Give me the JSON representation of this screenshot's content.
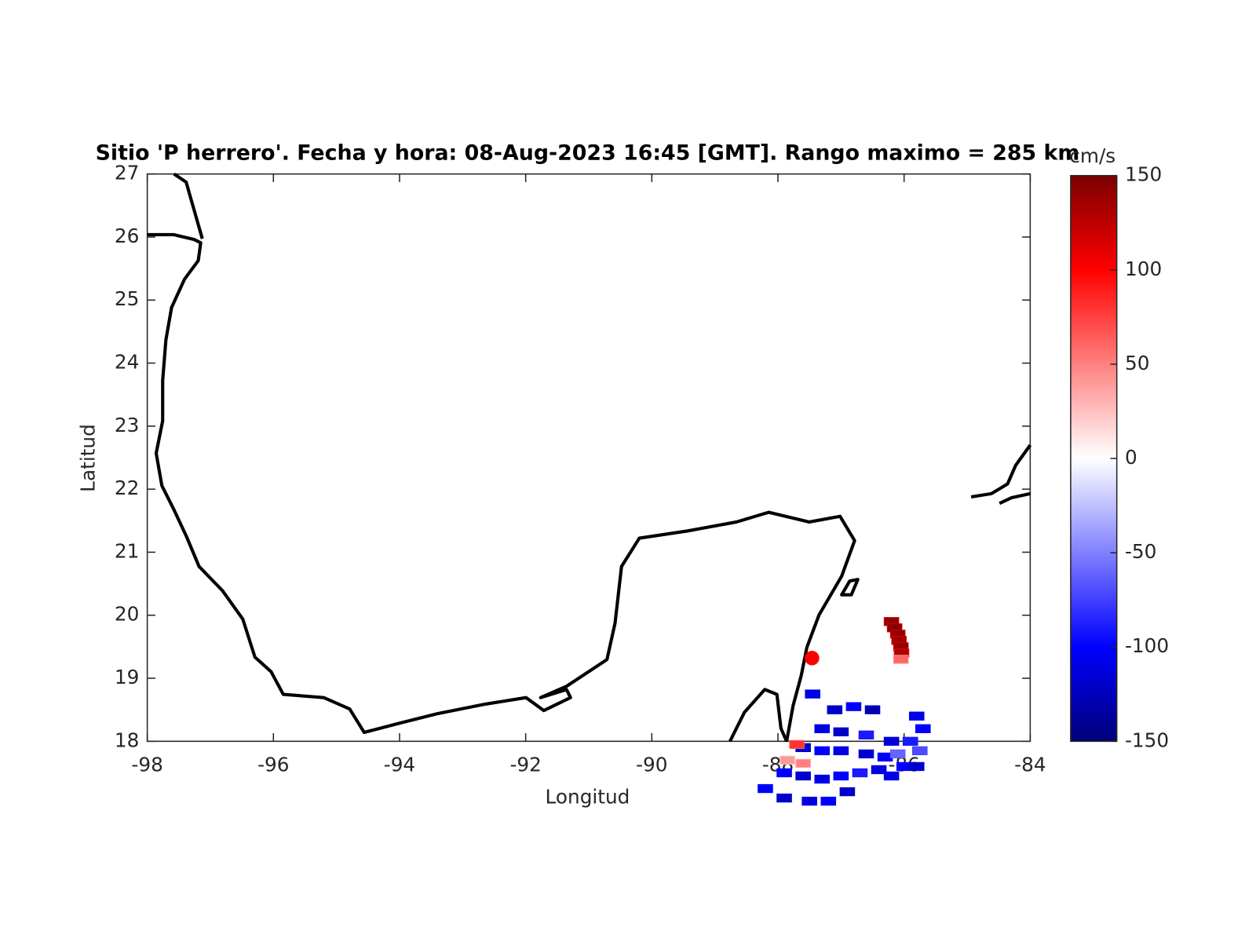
{
  "chart_data": {
    "type": "map",
    "title": "Sitio 'P herrero'. Fecha y hora: 08-Aug-2023 16:45 [GMT]. Rango maximo = 285 km",
    "xlabel": "Longitud",
    "ylabel": "Latitud",
    "xlim": [
      -98,
      -84
    ],
    "xticks": [
      -98,
      -96,
      -94,
      -92,
      -90,
      -88,
      -86,
      -84
    ],
    "ylim": [
      18,
      27
    ],
    "yticks": [
      18,
      19,
      20,
      21,
      22,
      23,
      24,
      25,
      26,
      27
    ],
    "site": {
      "lon": -87.46,
      "lat": 19.32,
      "color": "#ff0000"
    },
    "colorbar_label": "cm/s",
    "clim": [
      -150,
      150
    ],
    "cticks": [
      -150,
      -100,
      -50,
      0,
      50,
      100,
      150
    ],
    "colormap": [
      "#00007a",
      "#0000ff",
      "#8080ff",
      "#ffffff",
      "#ff8080",
      "#ff0000",
      "#7a0000"
    ],
    "x": [
      -86.2,
      -86.15,
      -86.1,
      -86.08,
      -86.05,
      -86.04,
      -86.05,
      -87.45,
      -87.1,
      -86.8,
      -86.5,
      -87.3,
      -87.0,
      -86.6,
      -86.2,
      -87.6,
      -87.3,
      -87.0,
      -86.6,
      -86.3,
      -86.1,
      -87.7,
      -87.85,
      -87.6,
      -87.9,
      -87.6,
      -87.3,
      -87.0,
      -86.7,
      -86.4,
      -88.2,
      -87.9,
      -87.5,
      -87.2,
      -86.9,
      -85.8,
      -85.7,
      -85.9,
      -85.75,
      -86.0,
      -86.2,
      -85.8
    ],
    "y": [
      19.9,
      19.8,
      19.7,
      19.6,
      19.5,
      19.4,
      19.3,
      18.75,
      18.5,
      18.55,
      18.5,
      18.2,
      18.15,
      18.1,
      18.0,
      17.9,
      17.85,
      17.85,
      17.8,
      17.75,
      17.8,
      17.95,
      17.7,
      17.65,
      17.5,
      17.45,
      17.4,
      17.45,
      17.5,
      17.55,
      17.25,
      17.1,
      17.05,
      17.05,
      17.2,
      18.4,
      18.2,
      18.0,
      17.85,
      17.6,
      17.45,
      17.6
    ],
    "values": [
      140,
      145,
      140,
      135,
      140,
      130,
      60,
      -110,
      -120,
      -100,
      -130,
      -110,
      -120,
      -90,
      -115,
      -120,
      -100,
      -110,
      -120,
      -100,
      -60,
      80,
      40,
      50,
      -100,
      -120,
      -110,
      -100,
      -90,
      -110,
      -100,
      -120,
      -110,
      -100,
      -120,
      -110,
      -100,
      -90,
      -70,
      -100,
      -110,
      -120
    ]
  }
}
